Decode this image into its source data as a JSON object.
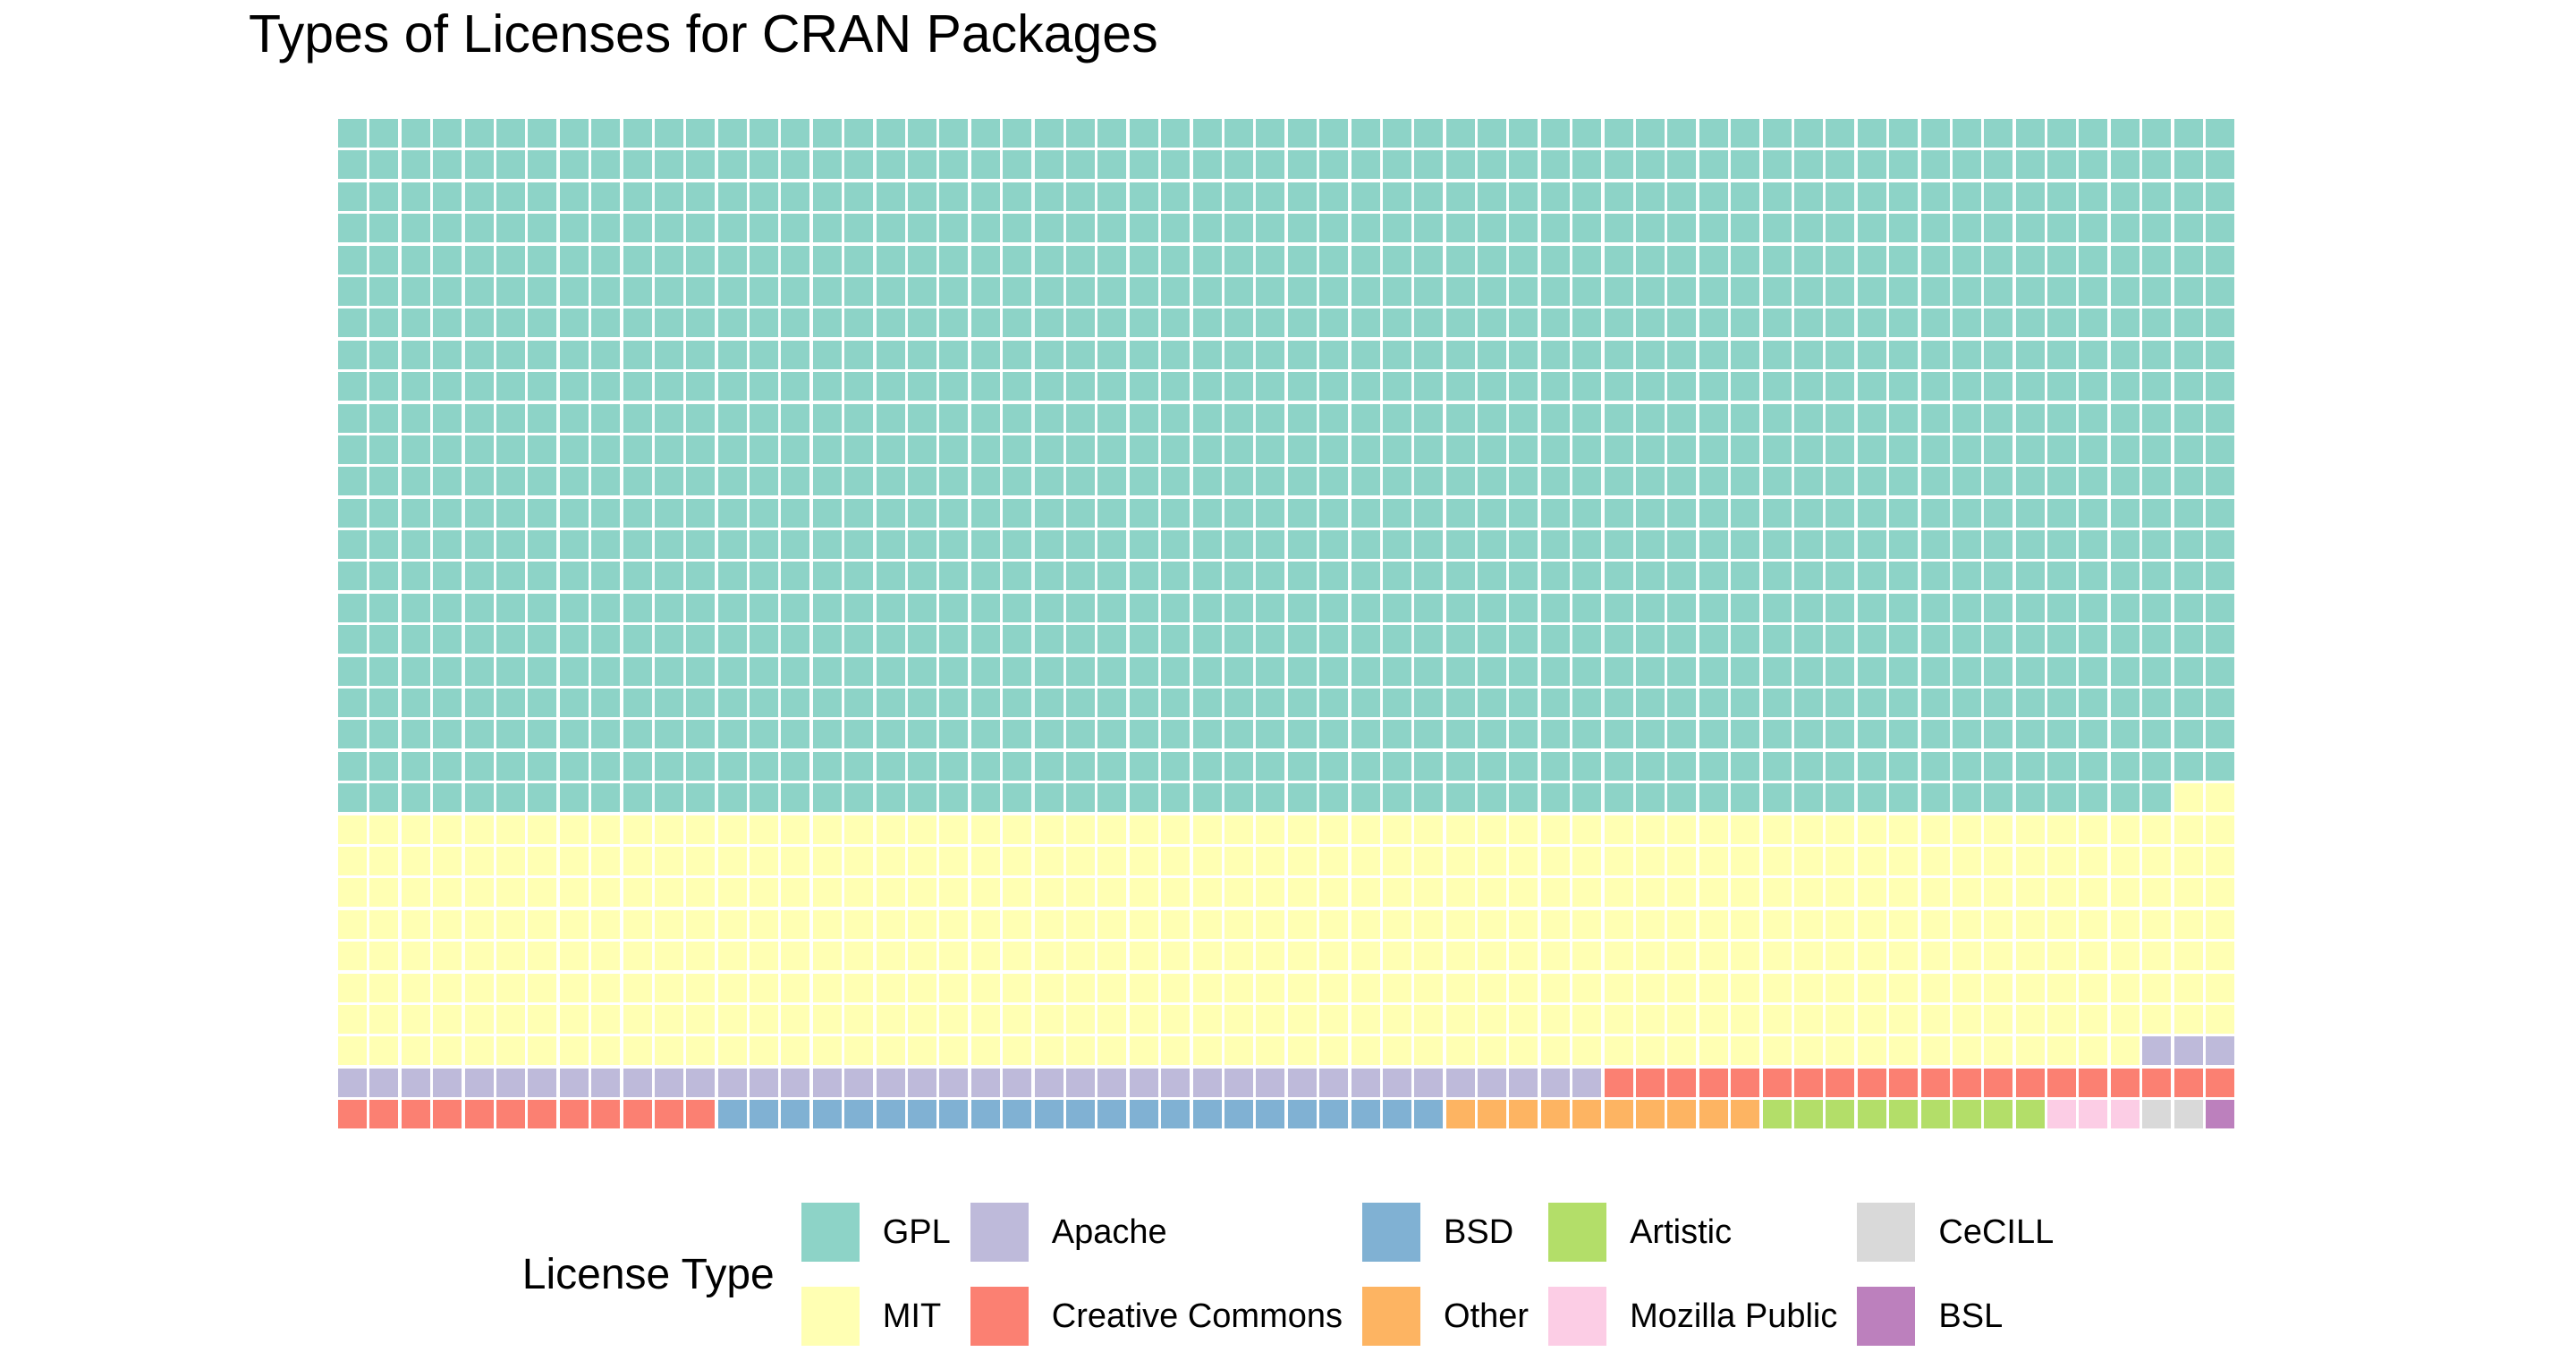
{
  "title": "Types of Licenses for CRAN Packages",
  "legend": {
    "title": "License Type",
    "position": "bottom",
    "rows_per_column": 2
  },
  "colors": {
    "background": "#FFFFFF",
    "text": "#000000",
    "cell_gap": "#FFFFFF"
  },
  "chart_data": {
    "type": "waffle",
    "title": "Types of Licenses for CRAN Packages",
    "legend_title": "License Type",
    "legend_position": "bottom",
    "grid": {
      "rows": 32,
      "cols": 60,
      "total_squares": 1920,
      "fill_order": "row-major, left-to-right, top-to-bottom"
    },
    "series": [
      {
        "name": "GPL",
        "squares": 1318,
        "color": "#8DD3C7"
      },
      {
        "name": "MIT",
        "squares": 479,
        "color": "#FFFFB3"
      },
      {
        "name": "Apache",
        "squares": 43,
        "color": "#BEBADA"
      },
      {
        "name": "Creative Commons",
        "squares": 32,
        "color": "#FB8072"
      },
      {
        "name": "BSD",
        "squares": 23,
        "color": "#80B1D3"
      },
      {
        "name": "Other",
        "squares": 10,
        "color": "#FDB462"
      },
      {
        "name": "Artistic",
        "squares": 9,
        "color": "#B3DE69"
      },
      {
        "name": "Mozilla Public",
        "squares": 3,
        "color": "#FCCDE5"
      },
      {
        "name": "CeCILL",
        "squares": 2,
        "color": "#D9D9D9"
      },
      {
        "name": "BSL",
        "squares": 1,
        "color": "#BC80BD"
      }
    ]
  }
}
